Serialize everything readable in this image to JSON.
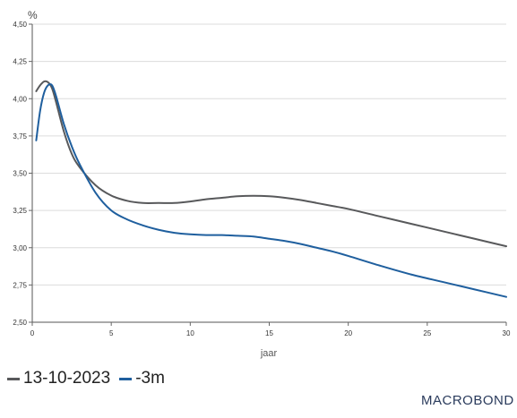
{
  "chart_data": {
    "type": "line",
    "unit_label": "%",
    "xlabel": "jaar",
    "ylabel": "",
    "xlim": [
      0,
      30
    ],
    "ylim": [
      2.5,
      4.5
    ],
    "x_ticks": [
      0,
      5,
      10,
      15,
      20,
      25,
      30
    ],
    "y_ticks": [
      "2,50",
      "2,75",
      "3,00",
      "3,25",
      "3,50",
      "3,75",
      "4,00",
      "4,25",
      "4,50"
    ],
    "y_tick_values": [
      2.5,
      2.75,
      3.0,
      3.25,
      3.5,
      3.75,
      4.0,
      4.25,
      4.5
    ],
    "grid": true,
    "legend_position": "bottom-left",
    "series": [
      {
        "name": "13-10-2023",
        "color": "#58595b",
        "x": [
          0.25,
          0.5,
          0.75,
          1,
          1.25,
          1.5,
          2,
          2.5,
          3,
          4,
          5,
          6,
          7,
          8,
          9,
          10,
          11,
          12,
          13,
          14,
          15,
          16,
          17,
          18,
          19,
          20,
          22,
          24,
          26,
          28,
          30
        ],
        "y": [
          4.05,
          4.09,
          4.115,
          4.11,
          4.07,
          3.98,
          3.78,
          3.63,
          3.54,
          3.42,
          3.35,
          3.315,
          3.3,
          3.3,
          3.3,
          3.31,
          3.325,
          3.335,
          3.345,
          3.348,
          3.345,
          3.335,
          3.32,
          3.3,
          3.28,
          3.26,
          3.21,
          3.16,
          3.11,
          3.06,
          3.01
        ]
      },
      {
        "name": "-3m",
        "color": "#1f5f9e",
        "x": [
          0.25,
          0.5,
          0.75,
          1,
          1.25,
          1.5,
          2,
          2.5,
          3,
          4,
          5,
          6,
          7,
          8,
          9,
          10,
          11,
          12,
          13,
          14,
          15,
          16,
          17,
          18,
          19,
          20,
          22,
          24,
          26,
          28,
          30
        ],
        "y": [
          3.72,
          3.92,
          4.04,
          4.09,
          4.09,
          4.02,
          3.83,
          3.68,
          3.56,
          3.37,
          3.25,
          3.19,
          3.15,
          3.12,
          3.1,
          3.09,
          3.085,
          3.085,
          3.08,
          3.075,
          3.06,
          3.045,
          3.025,
          3.0,
          2.975,
          2.945,
          2.88,
          2.82,
          2.77,
          2.72,
          2.67
        ]
      }
    ]
  },
  "branding": {
    "logo_text": "MACROBOND"
  }
}
